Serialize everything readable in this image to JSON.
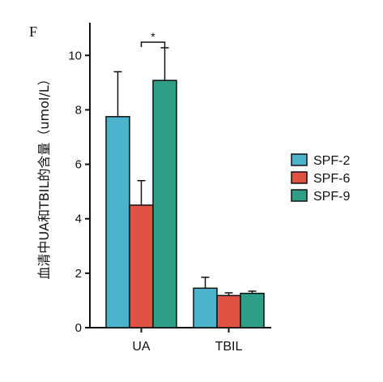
{
  "panel_label": "F",
  "chart_data": {
    "type": "bar",
    "categories": [
      "UA",
      "TBIL"
    ],
    "series": [
      {
        "name": "SPF-2",
        "color": "#4bb3cc",
        "values": [
          7.75,
          1.45
        ],
        "errors": [
          1.65,
          0.4
        ]
      },
      {
        "name": "SPF-6",
        "color": "#e05244",
        "values": [
          4.5,
          1.18
        ],
        "errors": [
          0.9,
          0.1
        ]
      },
      {
        "name": "SPF-9",
        "color": "#2e9e86",
        "values": [
          9.08,
          1.26
        ],
        "errors": [
          1.2,
          0.08
        ]
      }
    ],
    "ylabel": "血清中UA和TBIL的含量（umol/L）",
    "ylim": [
      0,
      11.2
    ],
    "yticks": [
      0,
      2,
      4,
      6,
      8,
      10
    ],
    "grid": false,
    "legend_position": "right",
    "annotations": [
      {
        "text": "*",
        "category": "UA",
        "from_series": 1,
        "to_series": 2
      }
    ]
  }
}
